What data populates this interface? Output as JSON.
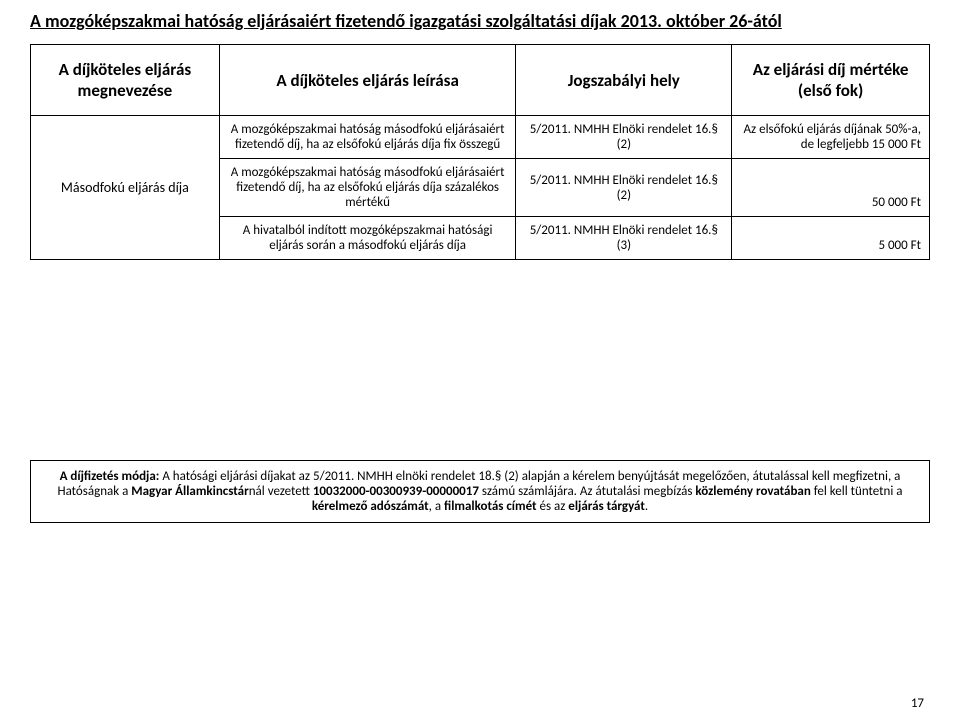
{
  "title": "A mozgóképszakmai hatóság eljárásaiért fizetendő igazgatási szolgáltatási díjak 2013. október 26-ától",
  "columns": {
    "c1": "A díjköteles eljárás megnevezése",
    "c2": "A díjköteles eljárás leírása",
    "c3": "Jogszabályi hely",
    "c4": "Az eljárási díj mértéke (első fok)"
  },
  "rowLabel": "Másodfokú eljárás díja",
  "rows": [
    {
      "desc": "A mozgóképszakmai hatóság másodfokú eljárásaiért fizetendő díj, ha az elsőfokú eljárás díja fix összegű",
      "law": "5/2011. NMHH Elnöki rendelet 16.§ (2)",
      "fee": "Az elsőfokú eljárás díjának 50%-a, de legfeljebb 15 000 Ft"
    },
    {
      "desc": "A mozgóképszakmai hatóság másodfokú eljárásaiért fizetendő díj, ha az elsőfokú eljárás díja százalékos mértékű",
      "law": "5/2011. NMHH Elnöki rendelet 16.§ (2)",
      "fee": "50 000 Ft"
    },
    {
      "desc": "A hivatalból indított mozgóképszakmai hatósági eljárás során a  másodfokú eljárás díja",
      "law": "5/2011. NMHH Elnöki rendelet 16.§ (3)",
      "fee": "5 000 Ft"
    }
  ],
  "footer": {
    "b1": "A díjfizetés módja:",
    "t1": " A hatósági eljárási díjakat az 5/2011. NMHH elnöki rendelet 18.§ (2) alapján a kérelem benyújtását megelőzően, átutalással kell megfizetni, a Hatóságnak a ",
    "b2": "Magyar Államkincstár",
    "t2": "nál vezetett ",
    "b3": "10032000-00300939-00000017",
    "t3": " számú számlájára. Az átutalási megbízás ",
    "b4": "közlemény rovatában",
    "t4": " fel kell tüntetni a ",
    "b5": "kérelmező adószámát",
    "t5": ", a ",
    "b6": "filmalkotás címét",
    "t6": " és az ",
    "b7": "eljárás tárgyát",
    "t7": "."
  },
  "pageNum": "17",
  "style": {
    "titleFontSize": 18,
    "headerFontSize": 17,
    "cellFontSize": 13,
    "borderColor": "#000000",
    "background": "#ffffff"
  }
}
